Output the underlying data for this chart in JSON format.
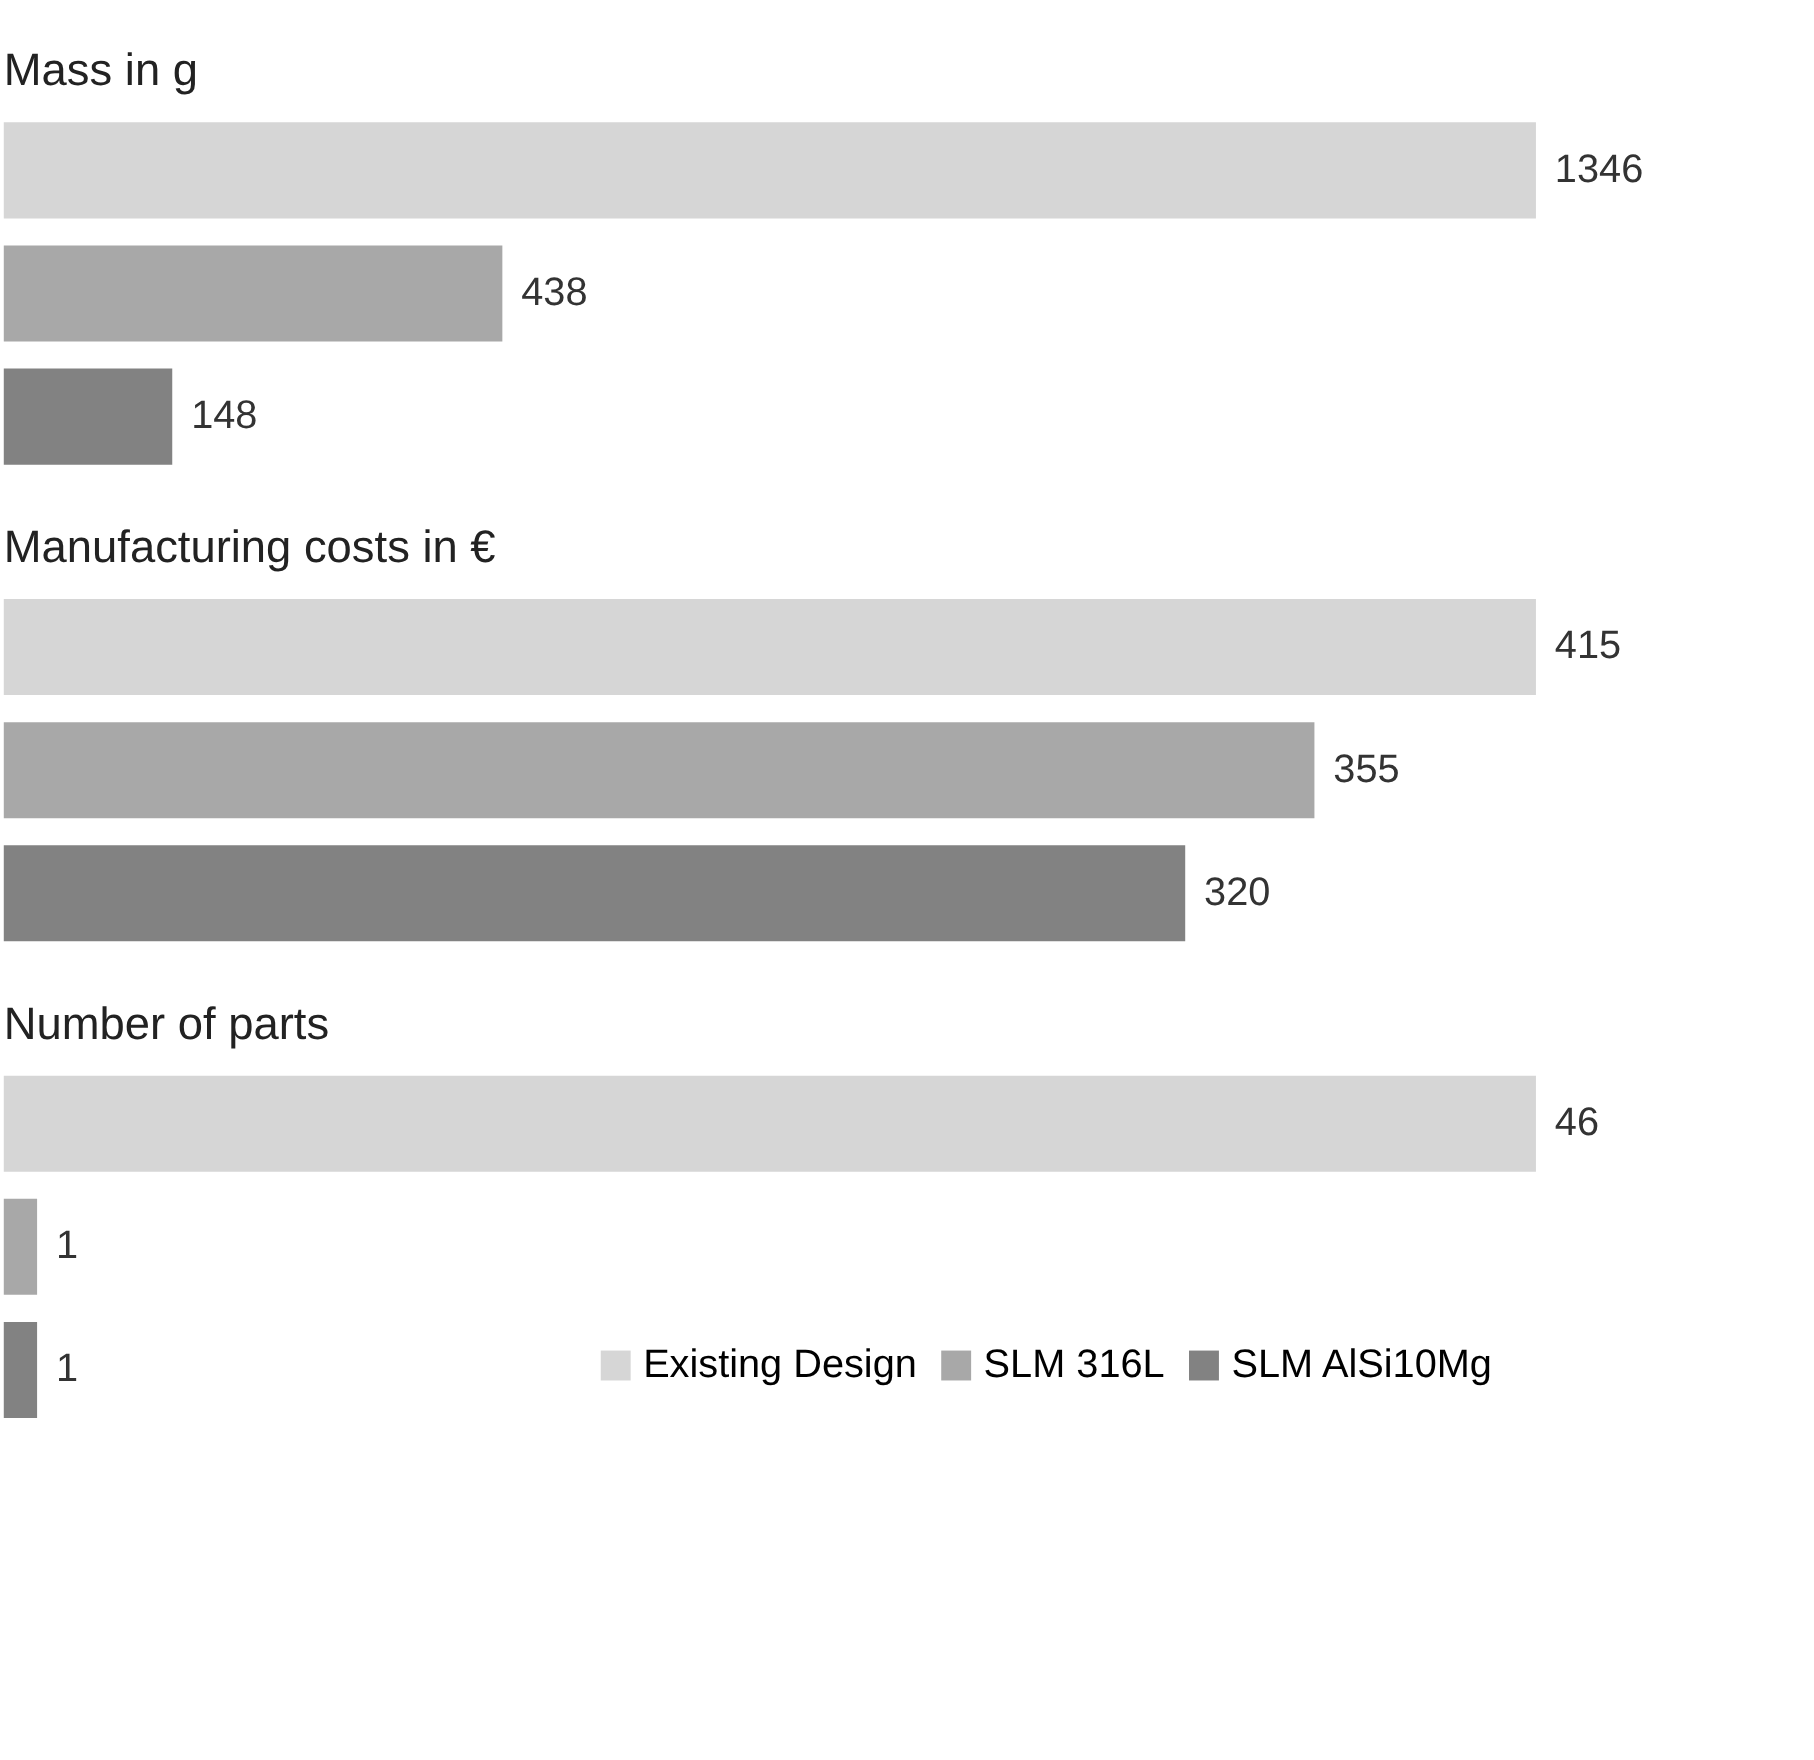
{
  "chart_data": [
    {
      "type": "bar",
      "orientation": "horizontal",
      "title": "Mass in g",
      "categories": [
        null
      ],
      "data_labels": true,
      "legend": false,
      "series": [
        {
          "color": "#d6d6d6",
          "values": [
            1346
          ]
        },
        {
          "color": "#a8a8a8",
          "values": [
            438
          ]
        },
        {
          "color": "#828282",
          "values": [
            148
          ]
        }
      ]
    },
    {
      "type": "bar",
      "orientation": "horizontal",
      "title": "Manufacturing costs in €",
      "categories": [
        null
      ],
      "data_labels": true,
      "legend": false,
      "series": [
        {
          "color": "#d6d6d6",
          "values": [
            415
          ]
        },
        {
          "color": "#a8a8a8",
          "values": [
            355
          ]
        },
        {
          "color": "#828282",
          "values": [
            320
          ]
        }
      ]
    },
    {
      "type": "bar",
      "orientation": "horizontal",
      "title": "Number of parts",
      "categories": [
        null
      ],
      "data_labels": true,
      "legend": "bottom right",
      "series": [
        {
          "name": "Existing Design",
          "color": "#d6d6d6",
          "values": [
            46
          ]
        },
        {
          "name": "SLM 316L",
          "color": "#a8a8a8",
          "values": [
            1
          ]
        },
        {
          "name": "SLM AlSi10Mg",
          "color": "#828282",
          "values": [
            1
          ]
        }
      ]
    }
  ]
}
